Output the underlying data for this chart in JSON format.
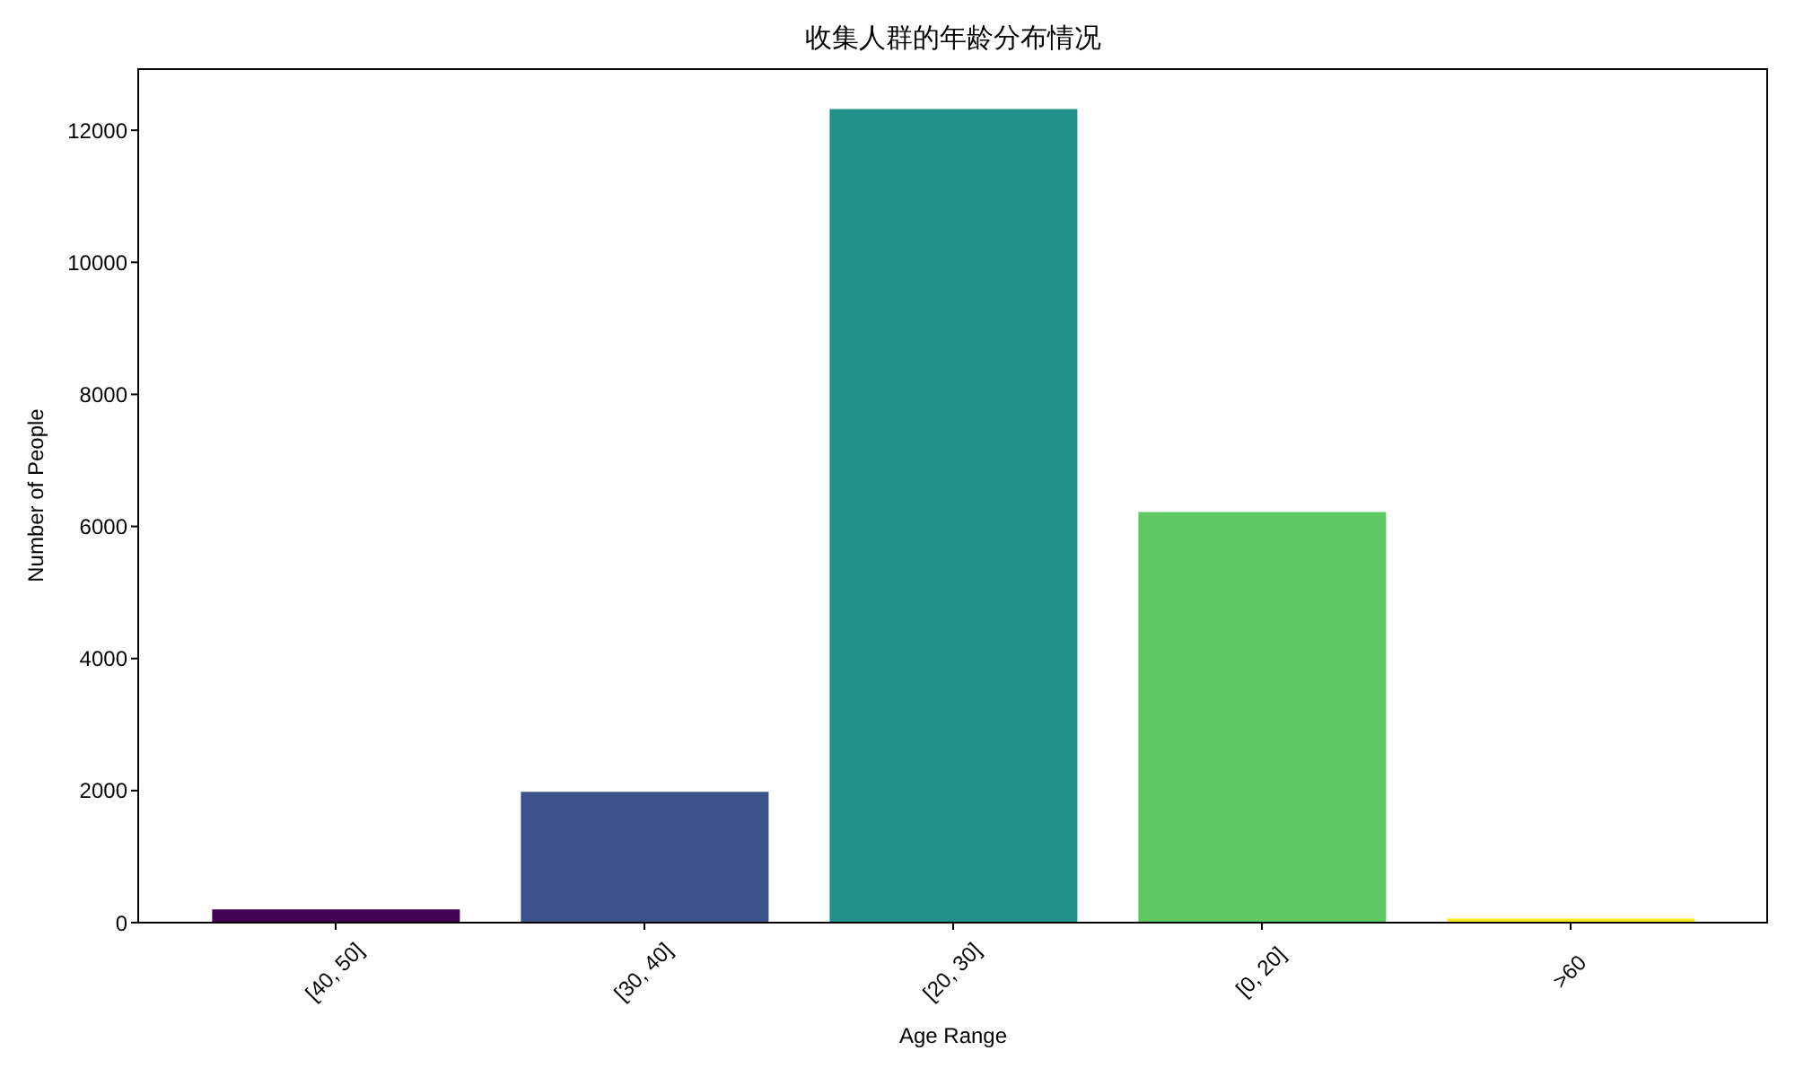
{
  "chart_data": {
    "type": "bar",
    "title": "收集人群的年龄分布情况",
    "xlabel": "Age Range",
    "ylabel": "Number of People",
    "categories": [
      "[40, 50]",
      "[30, 40]",
      "[20, 30]",
      "[0, 20]",
      ">60"
    ],
    "values": [
      200,
      1980,
      12320,
      6220,
      60
    ],
    "colors": [
      "#440154",
      "#3b528b",
      "#21918c",
      "#5ec962",
      "#fde725"
    ],
    "ylim": [
      0,
      12940
    ],
    "yticks": [
      0,
      2000,
      4000,
      6000,
      8000,
      10000,
      12000
    ]
  }
}
